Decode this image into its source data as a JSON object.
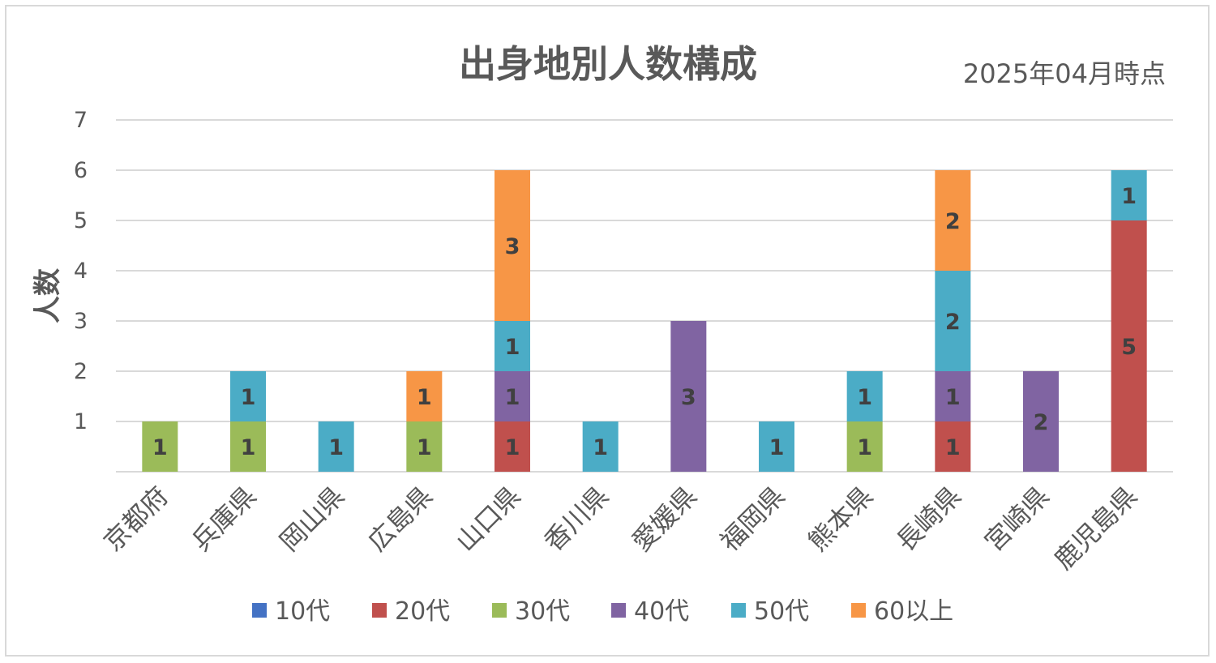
{
  "chart_data": {
    "type": "bar",
    "stacked": true,
    "title": "出身地別人数構成",
    "subtitle": "2025年04月時点",
    "xlabel": "",
    "ylabel": "人数",
    "ylim": [
      0,
      7
    ],
    "yticks": [
      1,
      2,
      3,
      4,
      5,
      6,
      7
    ],
    "grid": true,
    "legend_position": "bottom",
    "categories": [
      "京都府",
      "兵庫県",
      "岡山県",
      "広島県",
      "山口県",
      "香川県",
      "愛媛県",
      "福岡県",
      "熊本県",
      "長崎県",
      "宮崎県",
      "鹿児島県"
    ],
    "series": [
      {
        "name": "10代",
        "color": "#4472c4",
        "values": [
          0,
          0,
          0,
          0,
          0,
          0,
          0,
          0,
          0,
          0,
          0,
          0
        ]
      },
      {
        "name": "20代",
        "color": "#c0504d",
        "values": [
          0,
          0,
          0,
          0,
          1,
          0,
          0,
          0,
          0,
          1,
          0,
          5
        ]
      },
      {
        "name": "30代",
        "color": "#9bbb59",
        "values": [
          1,
          1,
          0,
          1,
          0,
          0,
          0,
          0,
          1,
          0,
          0,
          0
        ]
      },
      {
        "name": "40代",
        "color": "#8064a2",
        "values": [
          0,
          0,
          0,
          0,
          1,
          0,
          3,
          0,
          0,
          1,
          2,
          0
        ]
      },
      {
        "name": "50代",
        "color": "#4bacc6",
        "values": [
          0,
          1,
          1,
          0,
          1,
          1,
          0,
          1,
          1,
          2,
          0,
          1
        ]
      },
      {
        "name": "60以上",
        "color": "#f79646",
        "values": [
          0,
          0,
          0,
          1,
          3,
          0,
          0,
          0,
          0,
          2,
          0,
          0
        ]
      }
    ]
  }
}
